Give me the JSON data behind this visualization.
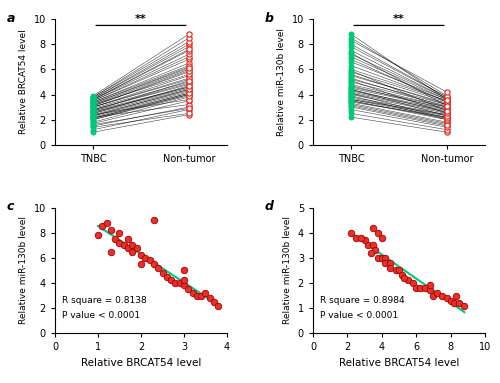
{
  "panel_a_tnbc": [
    1.0,
    1.2,
    1.5,
    1.7,
    1.8,
    2.0,
    2.1,
    2.2,
    2.3,
    2.4,
    2.5,
    2.6,
    2.7,
    2.8,
    2.9,
    3.0,
    3.0,
    3.1,
    3.2,
    3.3,
    3.4,
    3.5,
    3.5,
    3.6,
    3.6,
    3.7,
    3.7,
    3.8,
    3.8,
    3.9,
    2.2,
    2.4,
    2.6,
    2.8,
    3.0,
    3.2,
    3.4,
    3.6,
    1.4,
    1.6,
    2.0,
    2.1,
    2.3,
    2.5,
    2.7,
    3.1,
    3.3
  ],
  "panel_a_nontumor": [
    2.4,
    2.8,
    3.0,
    3.5,
    3.8,
    4.0,
    4.0,
    4.1,
    4.2,
    4.3,
    4.4,
    4.5,
    4.6,
    4.8,
    5.0,
    5.2,
    5.5,
    5.8,
    6.0,
    6.2,
    6.5,
    6.8,
    7.0,
    7.2,
    7.5,
    7.8,
    8.0,
    8.2,
    8.5,
    8.8,
    3.2,
    3.6,
    4.6,
    4.9,
    5.3,
    5.6,
    6.3,
    7.6,
    2.5,
    2.9,
    3.9,
    4.1,
    4.4,
    4.7,
    5.1,
    5.9,
    6.1
  ],
  "panel_b_tnbc": [
    2.2,
    2.5,
    3.0,
    3.2,
    3.3,
    3.5,
    3.5,
    3.6,
    3.7,
    3.8,
    4.0,
    4.1,
    4.2,
    4.3,
    4.5,
    4.6,
    4.8,
    5.0,
    5.2,
    5.5,
    5.8,
    6.0,
    6.3,
    6.6,
    7.0,
    7.2,
    7.5,
    7.8,
    8.0,
    8.5,
    3.4,
    3.6,
    4.4,
    4.7,
    5.3,
    5.6,
    6.8,
    8.8,
    2.8,
    3.1,
    3.9,
    4.1,
    4.4,
    5.1,
    5.9,
    7.3,
    8.3
  ],
  "panel_b_nontumor": [
    1.0,
    1.2,
    1.5,
    1.7,
    1.8,
    2.0,
    2.1,
    2.2,
    2.3,
    2.4,
    2.5,
    2.6,
    2.7,
    2.8,
    2.9,
    3.0,
    3.0,
    3.1,
    3.2,
    3.3,
    3.4,
    3.5,
    3.5,
    3.6,
    3.6,
    3.7,
    3.7,
    3.8,
    3.8,
    3.9,
    2.2,
    2.4,
    2.6,
    2.8,
    3.0,
    3.2,
    3.4,
    3.6,
    1.4,
    1.6,
    2.0,
    2.1,
    2.3,
    2.5,
    2.7,
    3.1,
    4.2
  ],
  "panel_c_x": [
    1.0,
    1.1,
    1.2,
    1.3,
    1.4,
    1.5,
    1.5,
    1.6,
    1.7,
    1.7,
    1.8,
    1.8,
    1.9,
    2.0,
    2.0,
    2.1,
    2.2,
    2.3,
    2.4,
    2.5,
    2.6,
    2.7,
    2.8,
    2.9,
    3.0,
    3.0,
    3.1,
    3.2,
    3.3,
    3.4,
    3.5,
    3.6,
    3.7,
    3.8,
    1.3,
    2.3,
    3.0
  ],
  "panel_c_y": [
    7.8,
    8.5,
    8.8,
    8.2,
    7.5,
    8.0,
    7.2,
    7.0,
    7.5,
    6.8,
    7.0,
    6.5,
    6.8,
    6.2,
    5.5,
    6.0,
    5.8,
    5.5,
    5.2,
    4.8,
    4.5,
    4.2,
    4.0,
    4.0,
    3.8,
    4.2,
    3.5,
    3.2,
    3.0,
    3.0,
    3.2,
    2.8,
    2.5,
    2.2,
    6.5,
    9.0,
    5.0
  ],
  "panel_d_x": [
    2.2,
    2.5,
    3.0,
    3.2,
    3.5,
    3.5,
    3.6,
    3.8,
    3.8,
    4.0,
    4.0,
    4.2,
    4.2,
    4.5,
    4.8,
    5.0,
    5.2,
    5.5,
    5.8,
    6.0,
    6.2,
    6.5,
    6.8,
    7.0,
    7.2,
    7.5,
    7.8,
    8.0,
    8.2,
    8.5,
    8.8,
    3.4,
    4.5,
    5.3,
    6.8,
    8.3,
    2.8
  ],
  "panel_d_y": [
    4.0,
    3.8,
    3.7,
    3.5,
    3.5,
    4.2,
    3.3,
    3.0,
    4.0,
    3.0,
    3.8,
    3.0,
    2.8,
    2.8,
    2.5,
    2.5,
    2.3,
    2.1,
    2.0,
    1.8,
    1.8,
    1.8,
    1.7,
    1.5,
    1.6,
    1.5,
    1.4,
    1.3,
    1.2,
    1.2,
    1.1,
    3.2,
    2.6,
    2.2,
    1.9,
    1.5,
    3.8
  ],
  "green_color": "#00C878",
  "red_fill": "#E8312A",
  "red_edge": "#A00000",
  "line_color": "#00C878",
  "background": "#ffffff",
  "ylabel_a": "Relative BRCAT54 level",
  "ylabel_b": "Relative miR-130b level",
  "ylabel_c": "Relative miR-130b level",
  "ylabel_d": "Relative miR-130b level",
  "xlabel_c": "Relative BRCAT54 level",
  "xlabel_d": "Relative BRCAT54 level",
  "sig_text": "**",
  "label_a": "a",
  "label_b": "b",
  "label_c": "c",
  "label_d": "d",
  "r2_c": "R square = 0.8138",
  "pval_c": "P value < 0.0001",
  "r2_d": "R square = 0.8984",
  "pval_d": "P value < 0.0001",
  "ylim_ab": [
    0,
    10
  ],
  "xlim_c": [
    0,
    4
  ],
  "ylim_c": [
    0,
    10
  ],
  "xlim_d": [
    0,
    10
  ],
  "ylim_d": [
    0,
    5
  ]
}
